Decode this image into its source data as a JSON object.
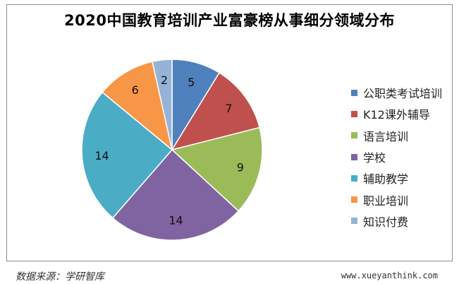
{
  "chart_data": {
    "type": "pie",
    "title": "2020中国教育培训产业富豪榜从事细分领域分布",
    "categories": [
      "公职类考试培训",
      "K12课外辅导",
      "语言培训",
      "学校",
      "辅助教学",
      "职业培训",
      "知识付费"
    ],
    "values": [
      5,
      7,
      9,
      14,
      14,
      6,
      2
    ],
    "colors": [
      "#4f81bd",
      "#c0504d",
      "#9bbb59",
      "#8064a2",
      "#4bacc6",
      "#f79646",
      "#95b3d7"
    ],
    "legend": "right"
  },
  "footer": {
    "source": "数据来源：学研智库",
    "site": "www.xueyanthink.com"
  }
}
